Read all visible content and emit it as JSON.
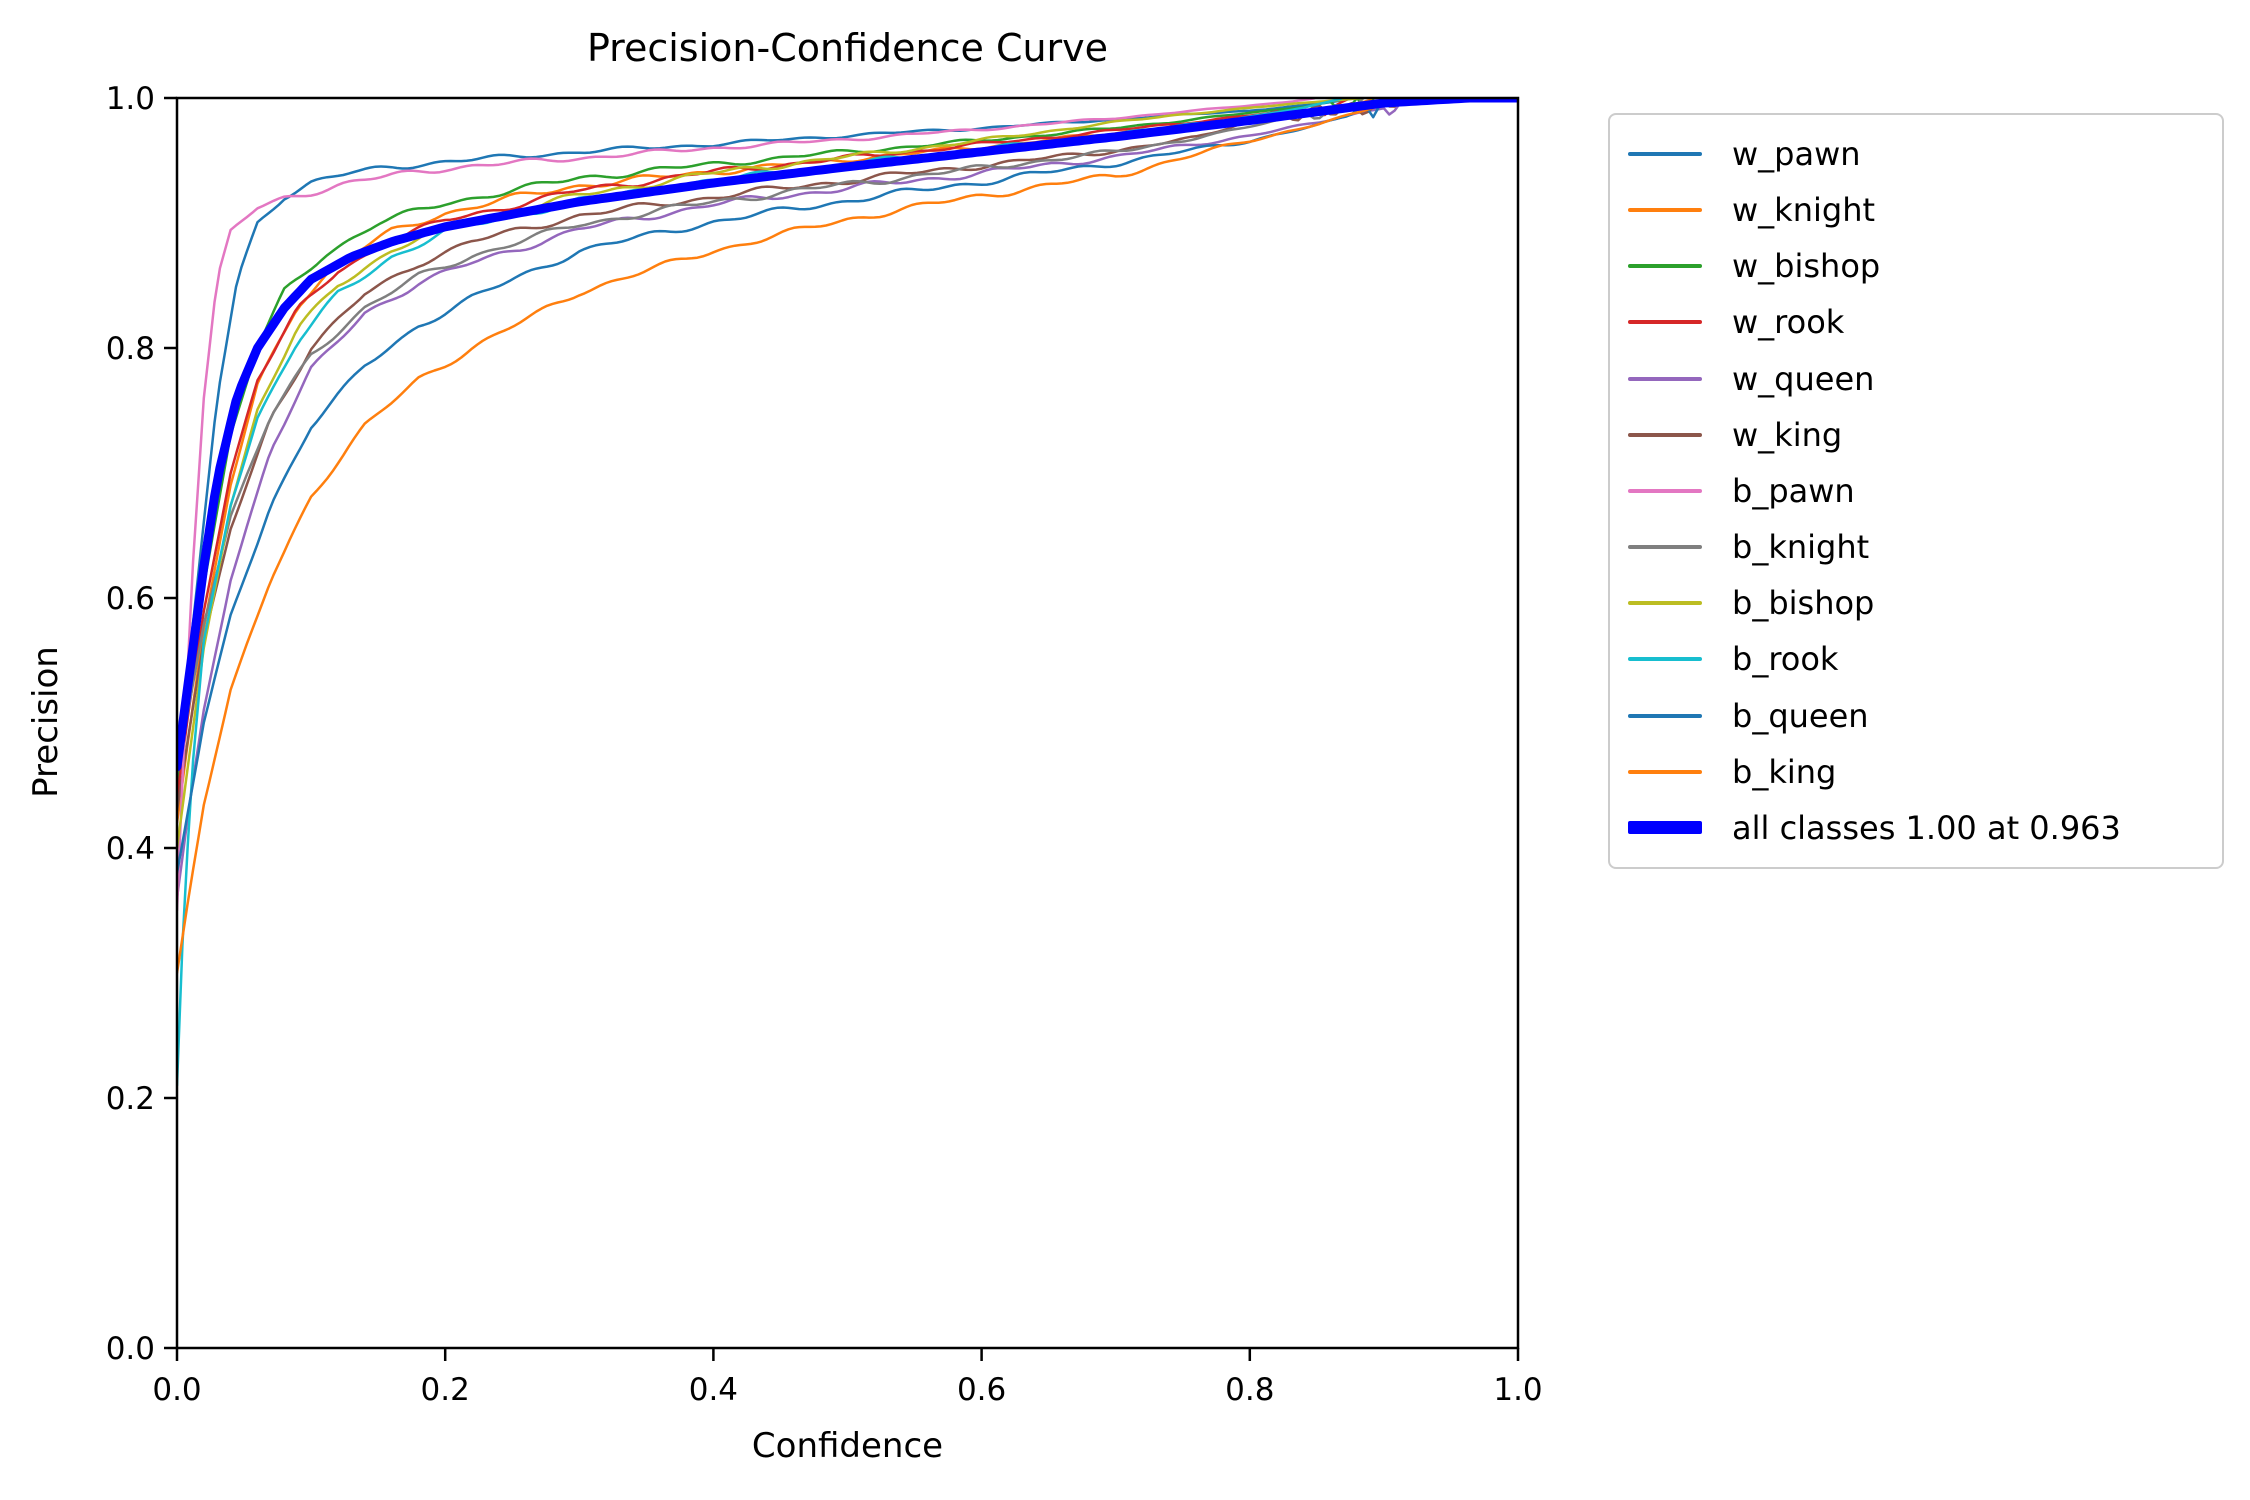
{
  "chart_data": {
    "type": "line",
    "title": "Precision-Confidence Curve",
    "xlabel": "Confidence",
    "ylabel": "Precision",
    "xlim": [
      0.0,
      1.0
    ],
    "ylim": [
      0.0,
      1.0
    ],
    "x_ticks": [
      "0.0",
      "0.2",
      "0.4",
      "0.6",
      "0.8",
      "1.0"
    ],
    "y_ticks": [
      "0.0",
      "0.2",
      "0.4",
      "0.6",
      "0.8",
      "1.0"
    ],
    "grid": false,
    "legend_position": "outside-right",
    "axis_color": "#000000",
    "series": [
      {
        "name": "w_pawn",
        "legend_label": "w_pawn",
        "color": "#1f77b4",
        "width": 2.5,
        "points": [
          [
            0,
            0.48
          ],
          [
            0.01,
            0.56
          ],
          [
            0.02,
            0.66
          ],
          [
            0.03,
            0.76
          ],
          [
            0.045,
            0.855
          ],
          [
            0.06,
            0.9
          ],
          [
            0.08,
            0.922
          ],
          [
            0.1,
            0.932
          ],
          [
            0.13,
            0.94
          ],
          [
            0.16,
            0.945
          ],
          [
            0.2,
            0.949
          ],
          [
            0.25,
            0.953
          ],
          [
            0.3,
            0.957
          ],
          [
            0.4,
            0.963
          ],
          [
            0.5,
            0.97
          ],
          [
            0.6,
            0.976
          ],
          [
            0.7,
            0.983
          ],
          [
            0.8,
            0.99
          ],
          [
            0.85,
            0.995
          ],
          [
            0.88,
            1.0
          ]
        ]
      },
      {
        "name": "w_knight",
        "legend_label": "w_knight",
        "color": "#ff7f0e",
        "width": 2.5,
        "points": [
          [
            0,
            0.42
          ],
          [
            0.01,
            0.5
          ],
          [
            0.02,
            0.575
          ],
          [
            0.04,
            0.69
          ],
          [
            0.06,
            0.77
          ],
          [
            0.09,
            0.835
          ],
          [
            0.12,
            0.868
          ],
          [
            0.16,
            0.893
          ],
          [
            0.2,
            0.908
          ],
          [
            0.25,
            0.92
          ],
          [
            0.3,
            0.93
          ],
          [
            0.4,
            0.941
          ],
          [
            0.5,
            0.951
          ],
          [
            0.6,
            0.961
          ],
          [
            0.7,
            0.972
          ],
          [
            0.78,
            0.982
          ],
          [
            0.82,
            0.985
          ],
          [
            0.85,
            0.988
          ],
          [
            0.87,
            0.992
          ],
          [
            0.895,
            1.0
          ]
        ]
      },
      {
        "name": "w_bishop",
        "legend_label": "w_bishop",
        "color": "#2ca02c",
        "width": 2.5,
        "points": [
          [
            0,
            0.45
          ],
          [
            0.01,
            0.53
          ],
          [
            0.02,
            0.61
          ],
          [
            0.04,
            0.73
          ],
          [
            0.06,
            0.8
          ],
          [
            0.08,
            0.845
          ],
          [
            0.11,
            0.875
          ],
          [
            0.15,
            0.9
          ],
          [
            0.2,
            0.916
          ],
          [
            0.3,
            0.936
          ],
          [
            0.4,
            0.947
          ],
          [
            0.5,
            0.957
          ],
          [
            0.6,
            0.966
          ],
          [
            0.7,
            0.976
          ],
          [
            0.8,
            0.988
          ],
          [
            0.84,
            0.993
          ],
          [
            0.86,
            0.997
          ],
          [
            0.87,
            0.987
          ],
          [
            0.88,
            1.0
          ],
          [
            0.887,
            0.99
          ],
          [
            0.893,
            1.0
          ]
        ]
      },
      {
        "name": "w_rook",
        "legend_label": "w_rook",
        "color": "#d62728",
        "width": 2.5,
        "points": [
          [
            0,
            0.44
          ],
          [
            0.01,
            0.52
          ],
          [
            0.02,
            0.59
          ],
          [
            0.04,
            0.7
          ],
          [
            0.06,
            0.775
          ],
          [
            0.09,
            0.83
          ],
          [
            0.12,
            0.862
          ],
          [
            0.16,
            0.886
          ],
          [
            0.2,
            0.902
          ],
          [
            0.3,
            0.926
          ],
          [
            0.4,
            0.941
          ],
          [
            0.5,
            0.952
          ],
          [
            0.6,
            0.963
          ],
          [
            0.7,
            0.974
          ],
          [
            0.8,
            0.986
          ],
          [
            0.845,
            0.991
          ],
          [
            0.855,
            0.986
          ],
          [
            0.865,
            0.995
          ],
          [
            0.875,
            1.0
          ]
        ]
      },
      {
        "name": "w_queen",
        "legend_label": "w_queen",
        "color": "#9467bd",
        "width": 2.5,
        "points": [
          [
            0,
            0.36
          ],
          [
            0.01,
            0.44
          ],
          [
            0.02,
            0.51
          ],
          [
            0.04,
            0.615
          ],
          [
            0.07,
            0.72
          ],
          [
            0.1,
            0.782
          ],
          [
            0.14,
            0.828
          ],
          [
            0.18,
            0.852
          ],
          [
            0.22,
            0.868
          ],
          [
            0.3,
            0.895
          ],
          [
            0.4,
            0.915
          ],
          [
            0.5,
            0.928
          ],
          [
            0.6,
            0.94
          ],
          [
            0.7,
            0.953
          ],
          [
            0.8,
            0.97
          ],
          [
            0.85,
            0.98
          ],
          [
            0.88,
            0.988
          ],
          [
            0.9,
            0.992
          ],
          [
            0.905,
            0.986
          ],
          [
            0.915,
            1.0
          ]
        ]
      },
      {
        "name": "w_king",
        "legend_label": "w_king",
        "color": "#8c564b",
        "width": 2.5,
        "points": [
          [
            0,
            0.43
          ],
          [
            0.01,
            0.5
          ],
          [
            0.02,
            0.565
          ],
          [
            0.04,
            0.655
          ],
          [
            0.07,
            0.745
          ],
          [
            0.1,
            0.8
          ],
          [
            0.14,
            0.843
          ],
          [
            0.18,
            0.868
          ],
          [
            0.22,
            0.885
          ],
          [
            0.3,
            0.906
          ],
          [
            0.4,
            0.921
          ],
          [
            0.5,
            0.934
          ],
          [
            0.6,
            0.946
          ],
          [
            0.7,
            0.958
          ],
          [
            0.76,
            0.968
          ],
          [
            0.8,
            0.982
          ],
          [
            0.82,
            0.99
          ],
          [
            0.835,
            0.981
          ],
          [
            0.85,
            0.995
          ],
          [
            0.862,
            0.985
          ],
          [
            0.875,
            0.997
          ],
          [
            0.885,
            0.986
          ],
          [
            0.9,
            1.0
          ],
          [
            0.906,
            0.99
          ],
          [
            0.912,
            1.0
          ]
        ]
      },
      {
        "name": "b_pawn",
        "legend_label": "b_pawn",
        "color": "#e377c2",
        "width": 2.5,
        "points": [
          [
            0,
            0.35
          ],
          [
            0.005,
            0.48
          ],
          [
            0.012,
            0.63
          ],
          [
            0.02,
            0.76
          ],
          [
            0.03,
            0.855
          ],
          [
            0.04,
            0.893
          ],
          [
            0.06,
            0.912
          ],
          [
            0.08,
            0.92
          ],
          [
            0.12,
            0.93
          ],
          [
            0.16,
            0.938
          ],
          [
            0.2,
            0.944
          ],
          [
            0.3,
            0.952
          ],
          [
            0.4,
            0.96
          ],
          [
            0.5,
            0.967
          ],
          [
            0.6,
            0.975
          ],
          [
            0.7,
            0.984
          ],
          [
            0.78,
            0.992
          ],
          [
            0.83,
            0.997
          ],
          [
            0.85,
            1.0
          ]
        ]
      },
      {
        "name": "b_knight",
        "legend_label": "b_knight",
        "color": "#7f7f7f",
        "width": 2.5,
        "points": [
          [
            0,
            0.46
          ],
          [
            0.01,
            0.52
          ],
          [
            0.02,
            0.58
          ],
          [
            0.04,
            0.665
          ],
          [
            0.07,
            0.745
          ],
          [
            0.1,
            0.795
          ],
          [
            0.14,
            0.832
          ],
          [
            0.18,
            0.857
          ],
          [
            0.22,
            0.874
          ],
          [
            0.3,
            0.899
          ],
          [
            0.4,
            0.917
          ],
          [
            0.5,
            0.931
          ],
          [
            0.6,
            0.944
          ],
          [
            0.7,
            0.957
          ],
          [
            0.78,
            0.972
          ],
          [
            0.82,
            0.982
          ],
          [
            0.84,
            0.99
          ],
          [
            0.85,
            0.983
          ],
          [
            0.865,
            0.995
          ],
          [
            0.875,
            0.99
          ],
          [
            0.885,
            1.0
          ]
        ]
      },
      {
        "name": "b_bishop",
        "legend_label": "b_bishop",
        "color": "#bcbd22",
        "width": 2.5,
        "points": [
          [
            0,
            0.4
          ],
          [
            0.01,
            0.48
          ],
          [
            0.02,
            0.56
          ],
          [
            0.04,
            0.675
          ],
          [
            0.06,
            0.75
          ],
          [
            0.09,
            0.815
          ],
          [
            0.12,
            0.851
          ],
          [
            0.16,
            0.878
          ],
          [
            0.2,
            0.896
          ],
          [
            0.3,
            0.922
          ],
          [
            0.4,
            0.94
          ],
          [
            0.5,
            0.953
          ],
          [
            0.6,
            0.966
          ],
          [
            0.68,
            0.978
          ],
          [
            0.75,
            0.987
          ],
          [
            0.8,
            0.992
          ],
          [
            0.85,
            0.997
          ],
          [
            0.885,
            1.0
          ]
        ]
      },
      {
        "name": "b_rook",
        "legend_label": "b_rook",
        "color": "#17becf",
        "width": 2.5,
        "points": [
          [
            0,
            0.21
          ],
          [
            0.005,
            0.35
          ],
          [
            0.012,
            0.47
          ],
          [
            0.02,
            0.565
          ],
          [
            0.04,
            0.675
          ],
          [
            0.06,
            0.745
          ],
          [
            0.09,
            0.805
          ],
          [
            0.12,
            0.843
          ],
          [
            0.16,
            0.873
          ],
          [
            0.2,
            0.893
          ],
          [
            0.3,
            0.918
          ],
          [
            0.4,
            0.934
          ],
          [
            0.5,
            0.947
          ],
          [
            0.6,
            0.959
          ],
          [
            0.7,
            0.971
          ],
          [
            0.8,
            0.985
          ],
          [
            0.84,
            0.992
          ],
          [
            0.87,
            1.0
          ]
        ]
      },
      {
        "name": "b_queen",
        "legend_label": "b_queen",
        "color": "#1f77b4",
        "width": 2.5,
        "points": [
          [
            0,
            0.38
          ],
          [
            0.01,
            0.44
          ],
          [
            0.02,
            0.5
          ],
          [
            0.04,
            0.585
          ],
          [
            0.07,
            0.675
          ],
          [
            0.1,
            0.738
          ],
          [
            0.14,
            0.785
          ],
          [
            0.18,
            0.818
          ],
          [
            0.22,
            0.84
          ],
          [
            0.3,
            0.878
          ],
          [
            0.4,
            0.901
          ],
          [
            0.5,
            0.918
          ],
          [
            0.6,
            0.933
          ],
          [
            0.7,
            0.948
          ],
          [
            0.8,
            0.966
          ],
          [
            0.85,
            0.978
          ],
          [
            0.875,
            0.986
          ],
          [
            0.885,
            0.996
          ],
          [
            0.892,
            0.985
          ],
          [
            0.9,
            1.0
          ]
        ]
      },
      {
        "name": "b_king",
        "legend_label": "b_king",
        "color": "#ff7f0e",
        "width": 2.5,
        "points": [
          [
            0,
            0.3
          ],
          [
            0.01,
            0.37
          ],
          [
            0.02,
            0.435
          ],
          [
            0.04,
            0.525
          ],
          [
            0.07,
            0.615
          ],
          [
            0.1,
            0.682
          ],
          [
            0.14,
            0.737
          ],
          [
            0.18,
            0.775
          ],
          [
            0.22,
            0.8
          ],
          [
            0.3,
            0.845
          ],
          [
            0.4,
            0.878
          ],
          [
            0.5,
            0.903
          ],
          [
            0.6,
            0.922
          ],
          [
            0.7,
            0.938
          ],
          [
            0.8,
            0.966
          ],
          [
            0.85,
            0.979
          ],
          [
            0.88,
            0.988
          ],
          [
            0.9,
            0.995
          ],
          [
            0.91,
            1.0
          ]
        ]
      },
      {
        "name": "all_classes",
        "legend_label": "all classes 1.00 at 0.963",
        "color": "#0000ff",
        "width": 9,
        "points": [
          [
            0,
            0.465
          ],
          [
            0.01,
            0.545
          ],
          [
            0.02,
            0.625
          ],
          [
            0.03,
            0.695
          ],
          [
            0.045,
            0.762
          ],
          [
            0.06,
            0.8
          ],
          [
            0.08,
            0.832
          ],
          [
            0.1,
            0.855
          ],
          [
            0.13,
            0.873
          ],
          [
            0.16,
            0.885
          ],
          [
            0.2,
            0.897
          ],
          [
            0.3,
            0.917
          ],
          [
            0.4,
            0.932
          ],
          [
            0.5,
            0.945
          ],
          [
            0.6,
            0.957
          ],
          [
            0.7,
            0.969
          ],
          [
            0.8,
            0.982
          ],
          [
            0.9,
            0.996
          ],
          [
            0.963,
            1.0
          ],
          [
            1.0,
            1.0
          ]
        ]
      }
    ]
  }
}
